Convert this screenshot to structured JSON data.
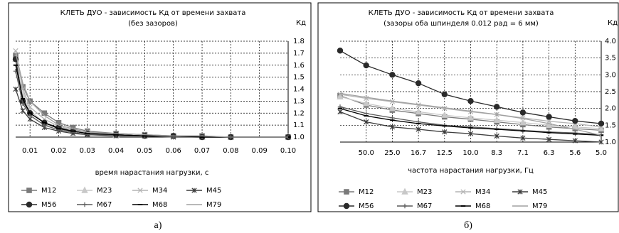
{
  "chart_data": [
    {
      "type": "line",
      "title": "КЛЕТЬ ДУО - зависимость Кд  от времени захвата",
      "subtitle": "(без зазоров)",
      "y_label": "Кд",
      "x_label": "время нарастания нагрузки, с",
      "caption": "а)",
      "grid": true,
      "x": [
        0.005,
        0.0075,
        0.01,
        0.015,
        0.02,
        0.025,
        0.03,
        0.04,
        0.05,
        0.06,
        0.07,
        0.08,
        0.1
      ],
      "xlim": [
        0.005,
        0.1
      ],
      "xticks": [
        0.01,
        0.02,
        0.03,
        0.04,
        0.05,
        0.06,
        0.07,
        0.08,
        0.09,
        {
          "value": 0.1,
          "label": "0.10"
        }
      ],
      "ylim": [
        1.0,
        1.8
      ],
      "yticks": [
        {
          "value": 1.0,
          "label": "1.0"
        },
        1.1,
        1.2,
        1.3,
        1.4,
        1.5,
        1.6,
        1.7,
        1.8
      ],
      "series": [
        {
          "name": "M12",
          "color": "#7a7a7a",
          "marker": "square",
          "values": [
            1.68,
            1.42,
            1.3,
            1.2,
            1.12,
            1.08,
            1.05,
            1.03,
            1.02,
            1.01,
            1.01,
            1.0,
            1.0
          ]
        },
        {
          "name": "M23",
          "color": "#c8c8c8",
          "marker": "triangle",
          "values": [
            1.65,
            1.35,
            1.22,
            1.12,
            1.07,
            1.05,
            1.03,
            1.02,
            1.01,
            1.01,
            1.0,
            1.0,
            1.0
          ]
        },
        {
          "name": "M34",
          "color": "#b4b4b4",
          "marker": "x",
          "values": [
            1.72,
            1.4,
            1.25,
            1.15,
            1.09,
            1.06,
            1.04,
            1.02,
            1.01,
            1.01,
            1.0,
            1.0,
            1.0
          ]
        },
        {
          "name": "M45",
          "color": "#3c3c3c",
          "marker": "star",
          "values": [
            1.4,
            1.22,
            1.15,
            1.08,
            1.05,
            1.03,
            1.02,
            1.01,
            1.01,
            1.0,
            1.0,
            1.0,
            1.0
          ]
        },
        {
          "name": "M56",
          "color": "#2a2a2a",
          "marker": "circle",
          "values": [
            1.65,
            1.3,
            1.2,
            1.12,
            1.08,
            1.05,
            1.03,
            1.02,
            1.01,
            1.01,
            1.0,
            1.0,
            1.0
          ]
        },
        {
          "name": "M67",
          "color": "#5a5a5a",
          "marker": "plus",
          "values": [
            1.55,
            1.28,
            1.18,
            1.1,
            1.06,
            1.04,
            1.02,
            1.02,
            1.01,
            1.0,
            1.0,
            1.0,
            1.0
          ]
        },
        {
          "name": "M68",
          "color": "#000000",
          "marker": "dash",
          "values": [
            1.6,
            1.32,
            1.2,
            1.12,
            1.07,
            1.05,
            1.03,
            1.02,
            1.01,
            1.01,
            1.0,
            1.0,
            1.0
          ]
        },
        {
          "name": "M79",
          "color": "#a0a0a0",
          "marker": "none",
          "values": [
            1.7,
            1.45,
            1.3,
            1.18,
            1.1,
            1.07,
            1.04,
            1.03,
            1.02,
            1.01,
            1.01,
            1.0,
            1.0
          ]
        }
      ]
    },
    {
      "type": "line",
      "title": "КЛЕТЬ ДУО - зависимость Кд  от времени захвата",
      "subtitle": "(зазоры оба шпинделя 0.012 рад = 6 мм)",
      "y_label": "Кд",
      "x_label": "частота нарастания нагрузки, Гц",
      "caption": "б)",
      "grid": true,
      "categories": [
        null,
        "50.0",
        "25.0",
        "16.7",
        "12.5",
        "10.0",
        "8.3",
        "7.1",
        "6.3",
        "5.6",
        "5.0"
      ],
      "ylim": [
        1.0,
        4.0
      ],
      "yticks": [
        {
          "value": 1.0,
          "label": "1.0"
        },
        1.5,
        {
          "value": 2.0,
          "label": "2.0"
        },
        2.5,
        {
          "value": 3.0,
          "label": "3.0"
        },
        3.5,
        {
          "value": 4.0,
          "label": "4.0"
        }
      ],
      "series": [
        {
          "name": "M12",
          "color": "#7a7a7a",
          "marker": "square",
          "values": [
            2.38,
            2.1,
            1.95,
            1.85,
            1.75,
            1.68,
            1.6,
            1.52,
            1.45,
            1.4,
            1.35
          ]
        },
        {
          "name": "M23",
          "color": "#c8c8c8",
          "marker": "triangle",
          "values": [
            2.35,
            2.15,
            2.0,
            1.9,
            1.8,
            1.72,
            1.65,
            1.58,
            1.5,
            1.45,
            1.4
          ]
        },
        {
          "name": "M34",
          "color": "#b4b4b4",
          "marker": "x",
          "values": [
            2.42,
            2.3,
            2.2,
            2.1,
            2.0,
            1.9,
            1.82,
            1.72,
            1.62,
            1.55,
            1.45
          ]
        },
        {
          "name": "M45",
          "color": "#3c3c3c",
          "marker": "star",
          "values": [
            1.9,
            1.6,
            1.45,
            1.38,
            1.3,
            1.25,
            1.18,
            1.12,
            1.08,
            1.04,
            1.0
          ]
        },
        {
          "name": "M56",
          "color": "#2a2a2a",
          "marker": "circle",
          "values": [
            3.72,
            3.28,
            3.0,
            2.75,
            2.42,
            2.22,
            2.05,
            1.88,
            1.75,
            1.63,
            1.55
          ]
        },
        {
          "name": "M67",
          "color": "#5a5a5a",
          "marker": "plus",
          "values": [
            2.05,
            1.85,
            1.72,
            1.6,
            1.5,
            1.45,
            1.4,
            1.35,
            1.3,
            1.27,
            1.22
          ]
        },
        {
          "name": "M68",
          "color": "#000000",
          "marker": "dash",
          "values": [
            2.0,
            1.78,
            1.65,
            1.55,
            1.48,
            1.42,
            1.38,
            1.33,
            1.28,
            1.24,
            1.2
          ]
        },
        {
          "name": "M79",
          "color": "#a0a0a0",
          "marker": "none",
          "values": [
            2.45,
            2.33,
            2.22,
            2.12,
            2.02,
            1.92,
            1.82,
            1.7,
            1.55,
            1.38,
            1.2
          ]
        }
      ]
    }
  ]
}
